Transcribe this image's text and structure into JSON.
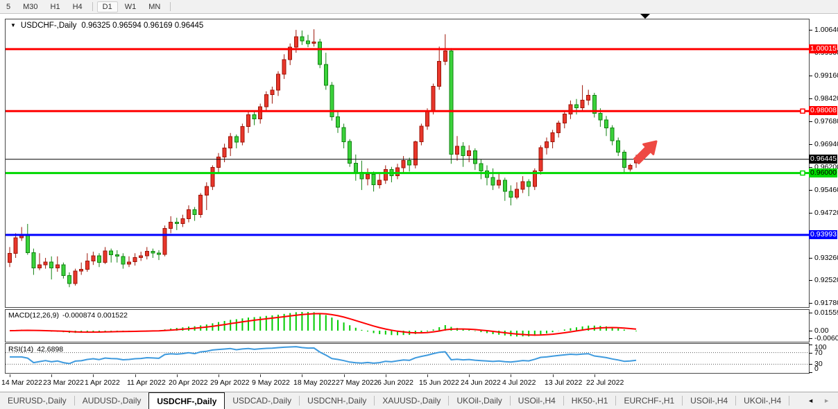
{
  "toolbar": {
    "timeframes": [
      "5",
      "M30",
      "H1",
      "H4",
      "D1",
      "W1",
      "MN"
    ],
    "active": "D1"
  },
  "chart": {
    "symbol_period": "USDCHF-,Daily",
    "ohlc": "0.96325 0.96594 0.96169 0.96445"
  },
  "indicators": {
    "macd": {
      "name": "MACD(12,26,9)",
      "values": "-0.000874 0.001522",
      "axis_labels": [
        "0.015596",
        "0.00",
        "-0.006055"
      ]
    },
    "rsi": {
      "name": "RSI(14)",
      "value": "42.6898",
      "axis_labels": [
        "100",
        "70",
        "30",
        "0"
      ],
      "levels": [
        70,
        30
      ]
    }
  },
  "tabs": {
    "items": [
      "EURUSD-,Daily",
      "AUDUSD-,Daily",
      "USDCHF-,Daily",
      "USDCAD-,Daily",
      "USDCNH-,Daily",
      "XAUUSD-,Daily",
      "UKOil-,Daily",
      "USOil-,H4",
      "HK50-,H1",
      "EURCHF-,H1",
      "USOil-,H4",
      "UKOil-,H4"
    ],
    "active_index": 2
  },
  "chart_data": {
    "type": "candlestick",
    "symbol": "USDCHF-",
    "timeframe": "Daily",
    "time_labels": [
      "14 Mar 2022",
      "23 Mar 2022",
      "1 Apr 2022",
      "11 Apr 2022",
      "20 Apr 2022",
      "29 Apr 2022",
      "9 May 2022",
      "18 May 2022",
      "27 May 2022",
      "6 Jun 2022",
      "15 Jun 2022",
      "24 Jun 2022",
      "4 Jul 2022",
      "13 Jul 2022",
      "22 Jul 2022"
    ],
    "tick_every": 7,
    "price_axis_ticks": [
      "1.00640",
      "0.99900",
      "0.99160",
      "0.98420",
      "0.97680",
      "0.96940",
      "0.96200",
      "0.95460",
      "0.94720",
      "0.93260",
      "0.92520",
      "0.91780"
    ],
    "ylim": [
      0.9166,
      1.0098
    ],
    "hlines": [
      {
        "price": 1.00015,
        "label": "1.00015",
        "color": "#ff0000",
        "width": 3,
        "badge_fg": "#ffffff",
        "anchor": false
      },
      {
        "price": 0.98008,
        "label": "0.98008",
        "color": "#ff0000",
        "width": 3,
        "badge_fg": "#ffffff",
        "anchor": true
      },
      {
        "price": 0.96445,
        "label": "0.96445",
        "color": "#000000",
        "width": 1,
        "badge_fg": "#ffffff",
        "anchor": false
      },
      {
        "price": 0.96,
        "label": "0.96000",
        "color": "#00d800",
        "width": 3,
        "badge_fg": "#000000",
        "anchor": true
      },
      {
        "price": 0.93993,
        "label": "0.93993",
        "color": "#0000ff",
        "width": 3,
        "badge_fg": "#ffffff",
        "anchor": false
      }
    ],
    "colors": {
      "up_body": "#e8362b",
      "up_border": "#9c1508",
      "down_body": "#3bd23b",
      "down_border": "#128212",
      "macd_histogram": "#00cc00",
      "macd_signal": "#ff0000",
      "rsi_line": "#3e9ade",
      "arrow": "#ee4943"
    },
    "annotations": [
      {
        "type": "up-right-arrow",
        "color": "#ee4943"
      }
    ],
    "candles": [
      [
        0.931,
        0.936,
        0.9295,
        0.934
      ],
      [
        0.934,
        0.9405,
        0.9325,
        0.939
      ],
      [
        0.939,
        0.9425,
        0.938,
        0.9398
      ],
      [
        0.94,
        0.9435,
        0.9335,
        0.9342
      ],
      [
        0.9342,
        0.9355,
        0.927,
        0.9292
      ],
      [
        0.9292,
        0.934,
        0.9285,
        0.9302
      ],
      [
        0.9302,
        0.9325,
        0.929,
        0.9312
      ],
      [
        0.9312,
        0.933,
        0.9255,
        0.9292
      ],
      [
        0.9292,
        0.933,
        0.928,
        0.9302
      ],
      [
        0.9302,
        0.931,
        0.9258,
        0.9268
      ],
      [
        0.9268,
        0.9278,
        0.923,
        0.9242
      ],
      [
        0.9242,
        0.929,
        0.9235,
        0.9282
      ],
      [
        0.9282,
        0.931,
        0.927,
        0.9288
      ],
      [
        0.9288,
        0.934,
        0.928,
        0.9315
      ],
      [
        0.9315,
        0.9345,
        0.9302,
        0.9332
      ],
      [
        0.9332,
        0.934,
        0.9295,
        0.931
      ],
      [
        0.931,
        0.936,
        0.9305,
        0.9347
      ],
      [
        0.9347,
        0.9355,
        0.931,
        0.9335
      ],
      [
        0.9335,
        0.935,
        0.931,
        0.933
      ],
      [
        0.933,
        0.934,
        0.929,
        0.9305
      ],
      [
        0.9305,
        0.933,
        0.9295,
        0.9312
      ],
      [
        0.9312,
        0.934,
        0.93,
        0.9326
      ],
      [
        0.9326,
        0.9345,
        0.9315,
        0.9332
      ],
      [
        0.9332,
        0.936,
        0.932,
        0.9346
      ],
      [
        0.9346,
        0.9355,
        0.9325,
        0.9341
      ],
      [
        0.9341,
        0.935,
        0.9318,
        0.9336
      ],
      [
        0.9336,
        0.943,
        0.933,
        0.9421
      ],
      [
        0.9421,
        0.946,
        0.9405,
        0.9441
      ],
      [
        0.9441,
        0.9455,
        0.9415,
        0.9436
      ],
      [
        0.9436,
        0.9465,
        0.9425,
        0.9452
      ],
      [
        0.9452,
        0.9495,
        0.944,
        0.9481
      ],
      [
        0.9481,
        0.949,
        0.9445,
        0.9466
      ],
      [
        0.9466,
        0.9535,
        0.9455,
        0.9528
      ],
      [
        0.9528,
        0.957,
        0.948,
        0.9556
      ],
      [
        0.9556,
        0.9625,
        0.9545,
        0.9618
      ],
      [
        0.9618,
        0.9665,
        0.96,
        0.9652
      ],
      [
        0.9652,
        0.9695,
        0.9635,
        0.9681
      ],
      [
        0.9681,
        0.973,
        0.9655,
        0.9718
      ],
      [
        0.9718,
        0.9725,
        0.968,
        0.97
      ],
      [
        0.97,
        0.976,
        0.969,
        0.9751
      ],
      [
        0.9751,
        0.9798,
        0.973,
        0.9789
      ],
      [
        0.9789,
        0.98,
        0.9755,
        0.9776
      ],
      [
        0.9776,
        0.9825,
        0.976,
        0.9815
      ],
      [
        0.9815,
        0.9865,
        0.98,
        0.9854
      ],
      [
        0.9854,
        0.988,
        0.9825,
        0.9869
      ],
      [
        0.9869,
        0.993,
        0.985,
        0.9921
      ],
      [
        0.9921,
        0.9985,
        0.9905,
        0.9968
      ],
      [
        0.9968,
        1.002,
        0.995,
        1.0008
      ],
      [
        1.0008,
        1.0064,
        0.999,
        1.0042
      ],
      [
        1.0042,
        1.0062,
        1.0015,
        1.0028
      ],
      [
        1.0028,
        1.0048,
        1.0008,
        1.002
      ],
      [
        1.002,
        1.0066,
        1.001,
        1.0025
      ],
      [
        1.0025,
        1.0035,
        0.994,
        0.9952
      ],
      [
        0.9952,
        0.999,
        0.987,
        0.9885
      ],
      [
        0.9885,
        0.9895,
        0.977,
        0.9782
      ],
      [
        0.9782,
        0.98,
        0.973,
        0.9748
      ],
      [
        0.9748,
        0.976,
        0.968,
        0.9702
      ],
      [
        0.9702,
        0.971,
        0.962,
        0.9632
      ],
      [
        0.9632,
        0.966,
        0.9575,
        0.9602
      ],
      [
        0.9602,
        0.964,
        0.9545,
        0.9581
      ],
      [
        0.9581,
        0.9615,
        0.956,
        0.9596
      ],
      [
        0.9596,
        0.9605,
        0.954,
        0.9562
      ],
      [
        0.9562,
        0.96,
        0.955,
        0.9577
      ],
      [
        0.9577,
        0.9625,
        0.9565,
        0.9612
      ],
      [
        0.9612,
        0.962,
        0.957,
        0.9591
      ],
      [
        0.9591,
        0.963,
        0.958,
        0.9617
      ],
      [
        0.9617,
        0.9655,
        0.96,
        0.9641
      ],
      [
        0.9641,
        0.965,
        0.9605,
        0.9626
      ],
      [
        0.9626,
        0.9705,
        0.9615,
        0.9701
      ],
      [
        0.9701,
        0.976,
        0.969,
        0.9752
      ],
      [
        0.9752,
        0.981,
        0.974,
        0.9801
      ],
      [
        0.9801,
        0.989,
        0.979,
        0.9881
      ],
      [
        0.9881,
        1.001,
        0.987,
        0.9962
      ],
      [
        0.9962,
        1.005,
        0.995,
        0.9996
      ],
      [
        0.9996,
        1.0005,
        0.963,
        0.9661
      ],
      [
        0.9661,
        0.972,
        0.964,
        0.9687
      ],
      [
        0.9687,
        0.97,
        0.962,
        0.9656
      ],
      [
        0.9656,
        0.969,
        0.9635,
        0.9672
      ],
      [
        0.9672,
        0.968,
        0.961,
        0.9631
      ],
      [
        0.9631,
        0.9645,
        0.958,
        0.9607
      ],
      [
        0.9607,
        0.9625,
        0.956,
        0.9586
      ],
      [
        0.9586,
        0.9615,
        0.9545,
        0.9561
      ],
      [
        0.9561,
        0.96,
        0.955,
        0.9577
      ],
      [
        0.9577,
        0.9585,
        0.951,
        0.9541
      ],
      [
        0.9541,
        0.956,
        0.9495,
        0.9522
      ],
      [
        0.9522,
        0.957,
        0.9515,
        0.9547
      ],
      [
        0.9547,
        0.959,
        0.9535,
        0.9572
      ],
      [
        0.9572,
        0.958,
        0.9525,
        0.9556
      ],
      [
        0.9556,
        0.9615,
        0.9545,
        0.9607
      ],
      [
        0.9607,
        0.969,
        0.9595,
        0.9682
      ],
      [
        0.9682,
        0.9715,
        0.966,
        0.9701
      ],
      [
        0.9701,
        0.974,
        0.968,
        0.9731
      ],
      [
        0.9731,
        0.977,
        0.9715,
        0.9762
      ],
      [
        0.9762,
        0.98,
        0.9745,
        0.9791
      ],
      [
        0.9791,
        0.9835,
        0.9775,
        0.9822
      ],
      [
        0.9822,
        0.984,
        0.979,
        0.9812
      ],
      [
        0.9812,
        0.9885,
        0.98,
        0.9836
      ],
      [
        0.9836,
        0.987,
        0.982,
        0.9852
      ],
      [
        0.9852,
        0.986,
        0.978,
        0.9794
      ],
      [
        0.9794,
        0.981,
        0.975,
        0.9772
      ],
      [
        0.9772,
        0.9785,
        0.972,
        0.9746
      ],
      [
        0.9746,
        0.9755,
        0.969,
        0.9705
      ],
      [
        0.9705,
        0.9715,
        0.9655,
        0.9668
      ],
      [
        0.9668,
        0.9675,
        0.96,
        0.9618
      ],
      [
        0.9613,
        0.963,
        0.9605,
        0.9625
      ],
      [
        0.96325,
        0.96594,
        0.96169,
        0.96445
      ]
    ]
  }
}
